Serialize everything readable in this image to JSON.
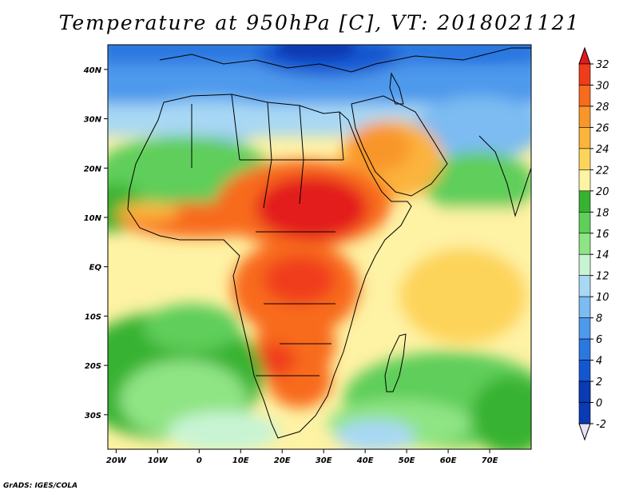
{
  "title": "Temperature at 950hPa [C], VT: 2018021121",
  "credit": "GrADS: IGES/COLA",
  "map": {
    "lon_range": [
      -22,
      80
    ],
    "lat_range": [
      -37,
      45
    ],
    "lat_labels": [
      "40N",
      "30N",
      "20N",
      "10N",
      "EQ",
      "10S",
      "20S",
      "30S"
    ],
    "lat_values": [
      40,
      30,
      20,
      10,
      0,
      -10,
      -20,
      -30
    ],
    "lon_labels": [
      "20W",
      "10W",
      "0",
      "10E",
      "20E",
      "30E",
      "40E",
      "50E",
      "60E",
      "70E"
    ],
    "lon_values": [
      -20,
      -10,
      0,
      10,
      20,
      30,
      40,
      50,
      60,
      70
    ]
  },
  "colorbar": {
    "levels": [
      "32",
      "30",
      "28",
      "26",
      "24",
      "22",
      "20",
      "18",
      "16",
      "14",
      "12",
      "10",
      "8",
      "6",
      "4",
      "2",
      "0",
      "-2"
    ],
    "colors": [
      "#e31a1c",
      "#f03c1a",
      "#f86a1c",
      "#f9962a",
      "#fbb43c",
      "#fdd45a",
      "#fef2a4",
      "#37b233",
      "#5fce5a",
      "#8fe484",
      "#c8f4d4",
      "#a8d8f4",
      "#7cbcf2",
      "#4d99ec",
      "#2a78e0",
      "#1357cf",
      "#0a3ab4",
      "#06237e"
    ]
  }
}
